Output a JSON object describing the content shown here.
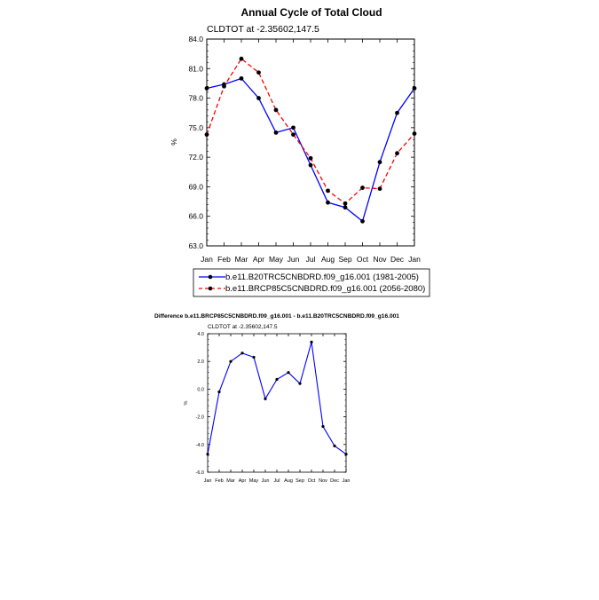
{
  "chart_data": [
    {
      "type": "line",
      "title": "Annual Cycle of Total Cloud",
      "subtitle": "CLDTOT at -2.35602,147.5",
      "ylabel": "%",
      "xlabel": "",
      "categories": [
        "Jan",
        "Feb",
        "Mar",
        "Apr",
        "May",
        "Jun",
        "Jul",
        "Aug",
        "Sep",
        "Oct",
        "Nov",
        "Dec",
        "Jan"
      ],
      "ylim": [
        63.0,
        84.0
      ],
      "yticks": [
        "63.0",
        "66.0",
        "69.0",
        "72.0",
        "75.0",
        "78.0",
        "81.0",
        "84.0"
      ],
      "grid": false,
      "legend_position": "bottom",
      "series": [
        {
          "name": "b.e11.B20TRC5CNBDRD.f09_g16.001 (1981-2005)",
          "color": "#0000ff",
          "dash": "solid",
          "values": [
            79.0,
            79.4,
            80.0,
            78.0,
            74.5,
            75.0,
            71.2,
            67.4,
            66.9,
            65.5,
            71.5,
            76.5,
            79.0
          ]
        },
        {
          "name": "b.e11.BRCP85C5CNBDRD.f09_g16.001 (2056-2080)",
          "color": "#ff0000",
          "dash": "dashed",
          "values": [
            74.3,
            79.2,
            82.0,
            80.6,
            76.8,
            74.3,
            71.9,
            68.6,
            67.3,
            68.9,
            68.8,
            72.4,
            74.4
          ]
        }
      ]
    },
    {
      "type": "line",
      "title": "Difference b.e11.BRCP85C5CNBDRD.f09_g16.001 - b.e11.B20TRC5CNBDRD.f09_g16.001",
      "subtitle": "CLDTOT at -2.35602,147.5",
      "ylabel": "%",
      "xlabel": "",
      "categories": [
        "Jan",
        "Feb",
        "Mar",
        "Apr",
        "May",
        "Jun",
        "Jul",
        "Aug",
        "Sep",
        "Oct",
        "Nov",
        "Dec",
        "Jan"
      ],
      "ylim": [
        -6.0,
        4.0
      ],
      "yticks": [
        "-6.0",
        "-4.0",
        "-2.0",
        "0.0",
        "2.0",
        "4.0"
      ],
      "grid": false,
      "series": [
        {
          "color": "#0000ff",
          "dash": "solid",
          "values": [
            -4.7,
            -0.2,
            2.0,
            2.6,
            2.3,
            -0.7,
            0.7,
            1.2,
            0.4,
            3.4,
            -2.7,
            -4.1,
            -4.7
          ]
        }
      ]
    }
  ]
}
